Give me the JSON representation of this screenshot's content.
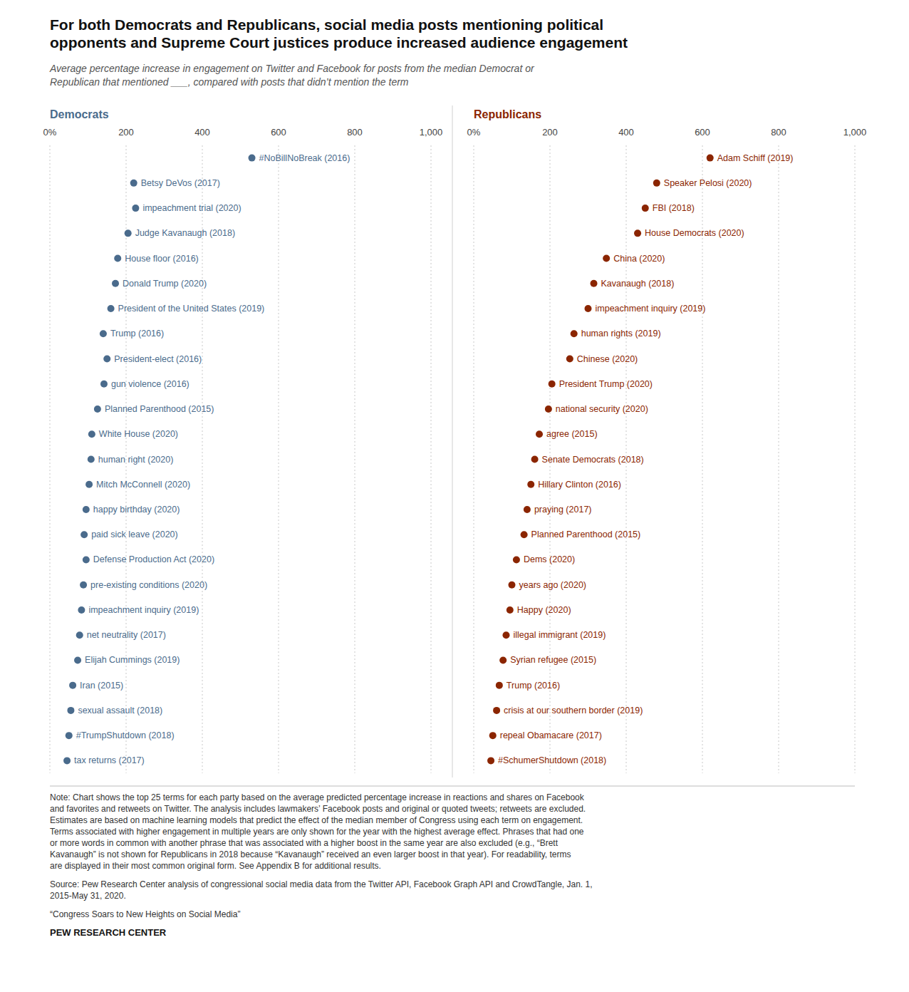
{
  "chart_data": [
    {
      "type": "dot",
      "title": "For both Democrats and Republicans, social media posts mentioning political\nopponents and Supreme Court justices produce increased audience engagement",
      "subtitle": "Average percentage increase in engagement on Twitter and Facebook for posts from the median Democrat or\nRepublican that mentioned ___, compared with posts that didn’t mention the term",
      "orientation": "horizontal",
      "grid": true,
      "xlim": [
        0,
        1000
      ],
      "xticks": [
        {
          "value": 0,
          "label": "0%"
        },
        200,
        400,
        600,
        800,
        {
          "value": 1000,
          "label": "1,000"
        }
      ],
      "categories": [
        "#NoBillNoBreak (2016)",
        "Betsy DeVos (2017)",
        "impeachment trial (2020)",
        "Judge Kavanaugh (2018)",
        "House floor (2016)",
        "Donald Trump (2020)",
        "President of the United States (2019)",
        "Trump (2016)",
        "President-elect (2016)",
        "gun violence (2016)",
        "Planned Parenthood (2015)",
        "White House (2020)",
        "human right (2020)",
        "Mitch McConnell (2020)",
        "happy birthday (2020)",
        "paid sick leave (2020)",
        "Defense Production Act (2020)",
        "pre-existing conditions (2020)",
        "impeachment inquiry (2019)",
        "net neutrality (2017)",
        "Elijah Cummings (2019)",
        "Iran (2015)",
        "sexual assault (2018)",
        "#TrumpShutdown (2018)",
        "tax returns (2017)"
      ],
      "series": [
        {
          "name": "Democrats",
          "color": "#4a6b8c",
          "values": [
            530,
            220,
            225,
            205,
            178,
            172,
            160,
            140,
            150,
            142,
            125,
            110,
            108,
            103,
            95,
            90,
            95,
            88,
            83,
            78,
            73,
            60,
            55,
            50,
            45
          ]
        }
      ],
      "annotations": [
        "Note: Chart shows the top 25 terms for each party based on the average predicted percentage increase in reactions and shares on Facebook\nand favorites and retweets on Twitter. The analysis includes lawmakers’ Facebook posts and original or quoted tweets; retweets are excluded.\nEstimates are based on machine learning models that predict the effect of the median member of Congress using each term on engagement.\nTerms associated with higher engagement in multiple years are only shown for the year with the highest average effect. Phrases that had one\nor more words in common with another phrase that was associated with a higher boost in the same year are also excluded (e.g., “Brett\nKavanaugh” is not shown for Republicans in 2018 because “Kavanaugh” received an even larger boost in that year). For readability, terms\nare displayed in their most common original form. See Appendix B for additional results.",
        "Source: Pew Research Center analysis of congressional social media data from the Twitter API, Facebook Graph API and CrowdTangle, Jan. 1,\n2015-May 31, 2020.",
        "“Congress Soars to New Heights on Social Media”",
        "PEW RESEARCH CENTER"
      ]
    },
    {
      "type": "dot",
      "orientation": "horizontal",
      "grid": true,
      "xlim": [
        0,
        1000
      ],
      "xticks": [
        {
          "value": 0,
          "label": "0%"
        },
        200,
        400,
        600,
        800,
        {
          "value": 1000,
          "label": "1,000"
        }
      ],
      "categories": [
        "Adam Schiff (2019)",
        "Speaker Pelosi (2020)",
        "FBI (2018)",
        "House Democrats (2020)",
        "China (2020)",
        "Kavanaugh (2018)",
        "impeachment inquiry (2019)",
        "human rights (2019)",
        "Chinese (2020)",
        "President Trump (2020)",
        "national security (2020)",
        "agree (2015)",
        "Senate Democrats (2018)",
        "Hillary Clinton (2016)",
        "praying (2017)",
        "Planned Parenthood (2015)",
        "Dems (2020)",
        "years ago (2020)",
        "Happy (2020)",
        "illegal immigrant (2019)",
        "Syrian refugee (2015)",
        "Trump (2016)",
        "crisis at our southern border (2019)",
        "repeal Obamacare (2017)",
        "#SchumerShutdown (2018)"
      ],
      "series": [
        {
          "name": "Republicans",
          "color": "#8b2500",
          "values": [
            620,
            480,
            450,
            430,
            348,
            315,
            300,
            263,
            252,
            205,
            196,
            172,
            160,
            150,
            140,
            132,
            112,
            100,
            95,
            85,
            77,
            67,
            60,
            50,
            45
          ]
        }
      ]
    }
  ]
}
